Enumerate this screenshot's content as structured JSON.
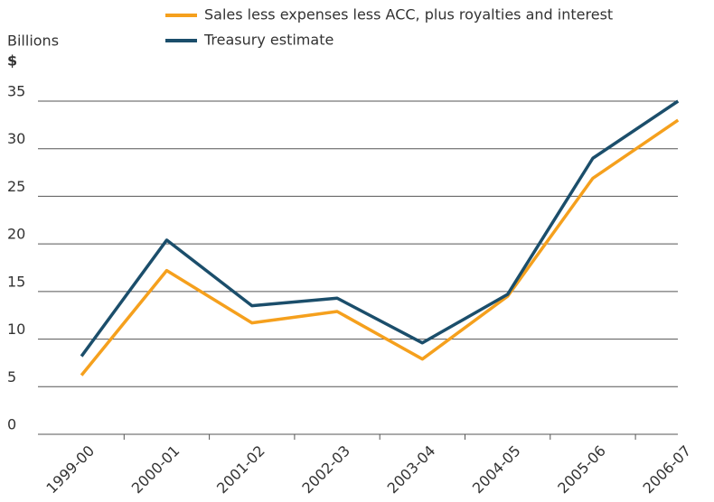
{
  "chart_data": {
    "type": "line",
    "y_axis_label": "Billions",
    "y_axis_unit": "$",
    "categories": [
      "1999-00",
      "2000-01",
      "2001-02",
      "2002-03",
      "2003-04",
      "2004-05",
      "2005-06",
      "2006-07"
    ],
    "series": [
      {
        "name": "Sales less expenses less ACC, plus royalties and interest",
        "color": "#f5a01d",
        "values": [
          6.2,
          17.2,
          11.7,
          12.9,
          7.9,
          14.5,
          26.9,
          33.0
        ]
      },
      {
        "name": "Treasury estimate",
        "color": "#1b4e6b",
        "values": [
          8.2,
          20.4,
          13.5,
          14.3,
          9.6,
          14.7,
          29.0,
          35.0
        ]
      }
    ],
    "ylim": [
      0,
      35
    ],
    "yticks": [
      0,
      5,
      10,
      15,
      20,
      25,
      30,
      35
    ],
    "grid": true
  }
}
